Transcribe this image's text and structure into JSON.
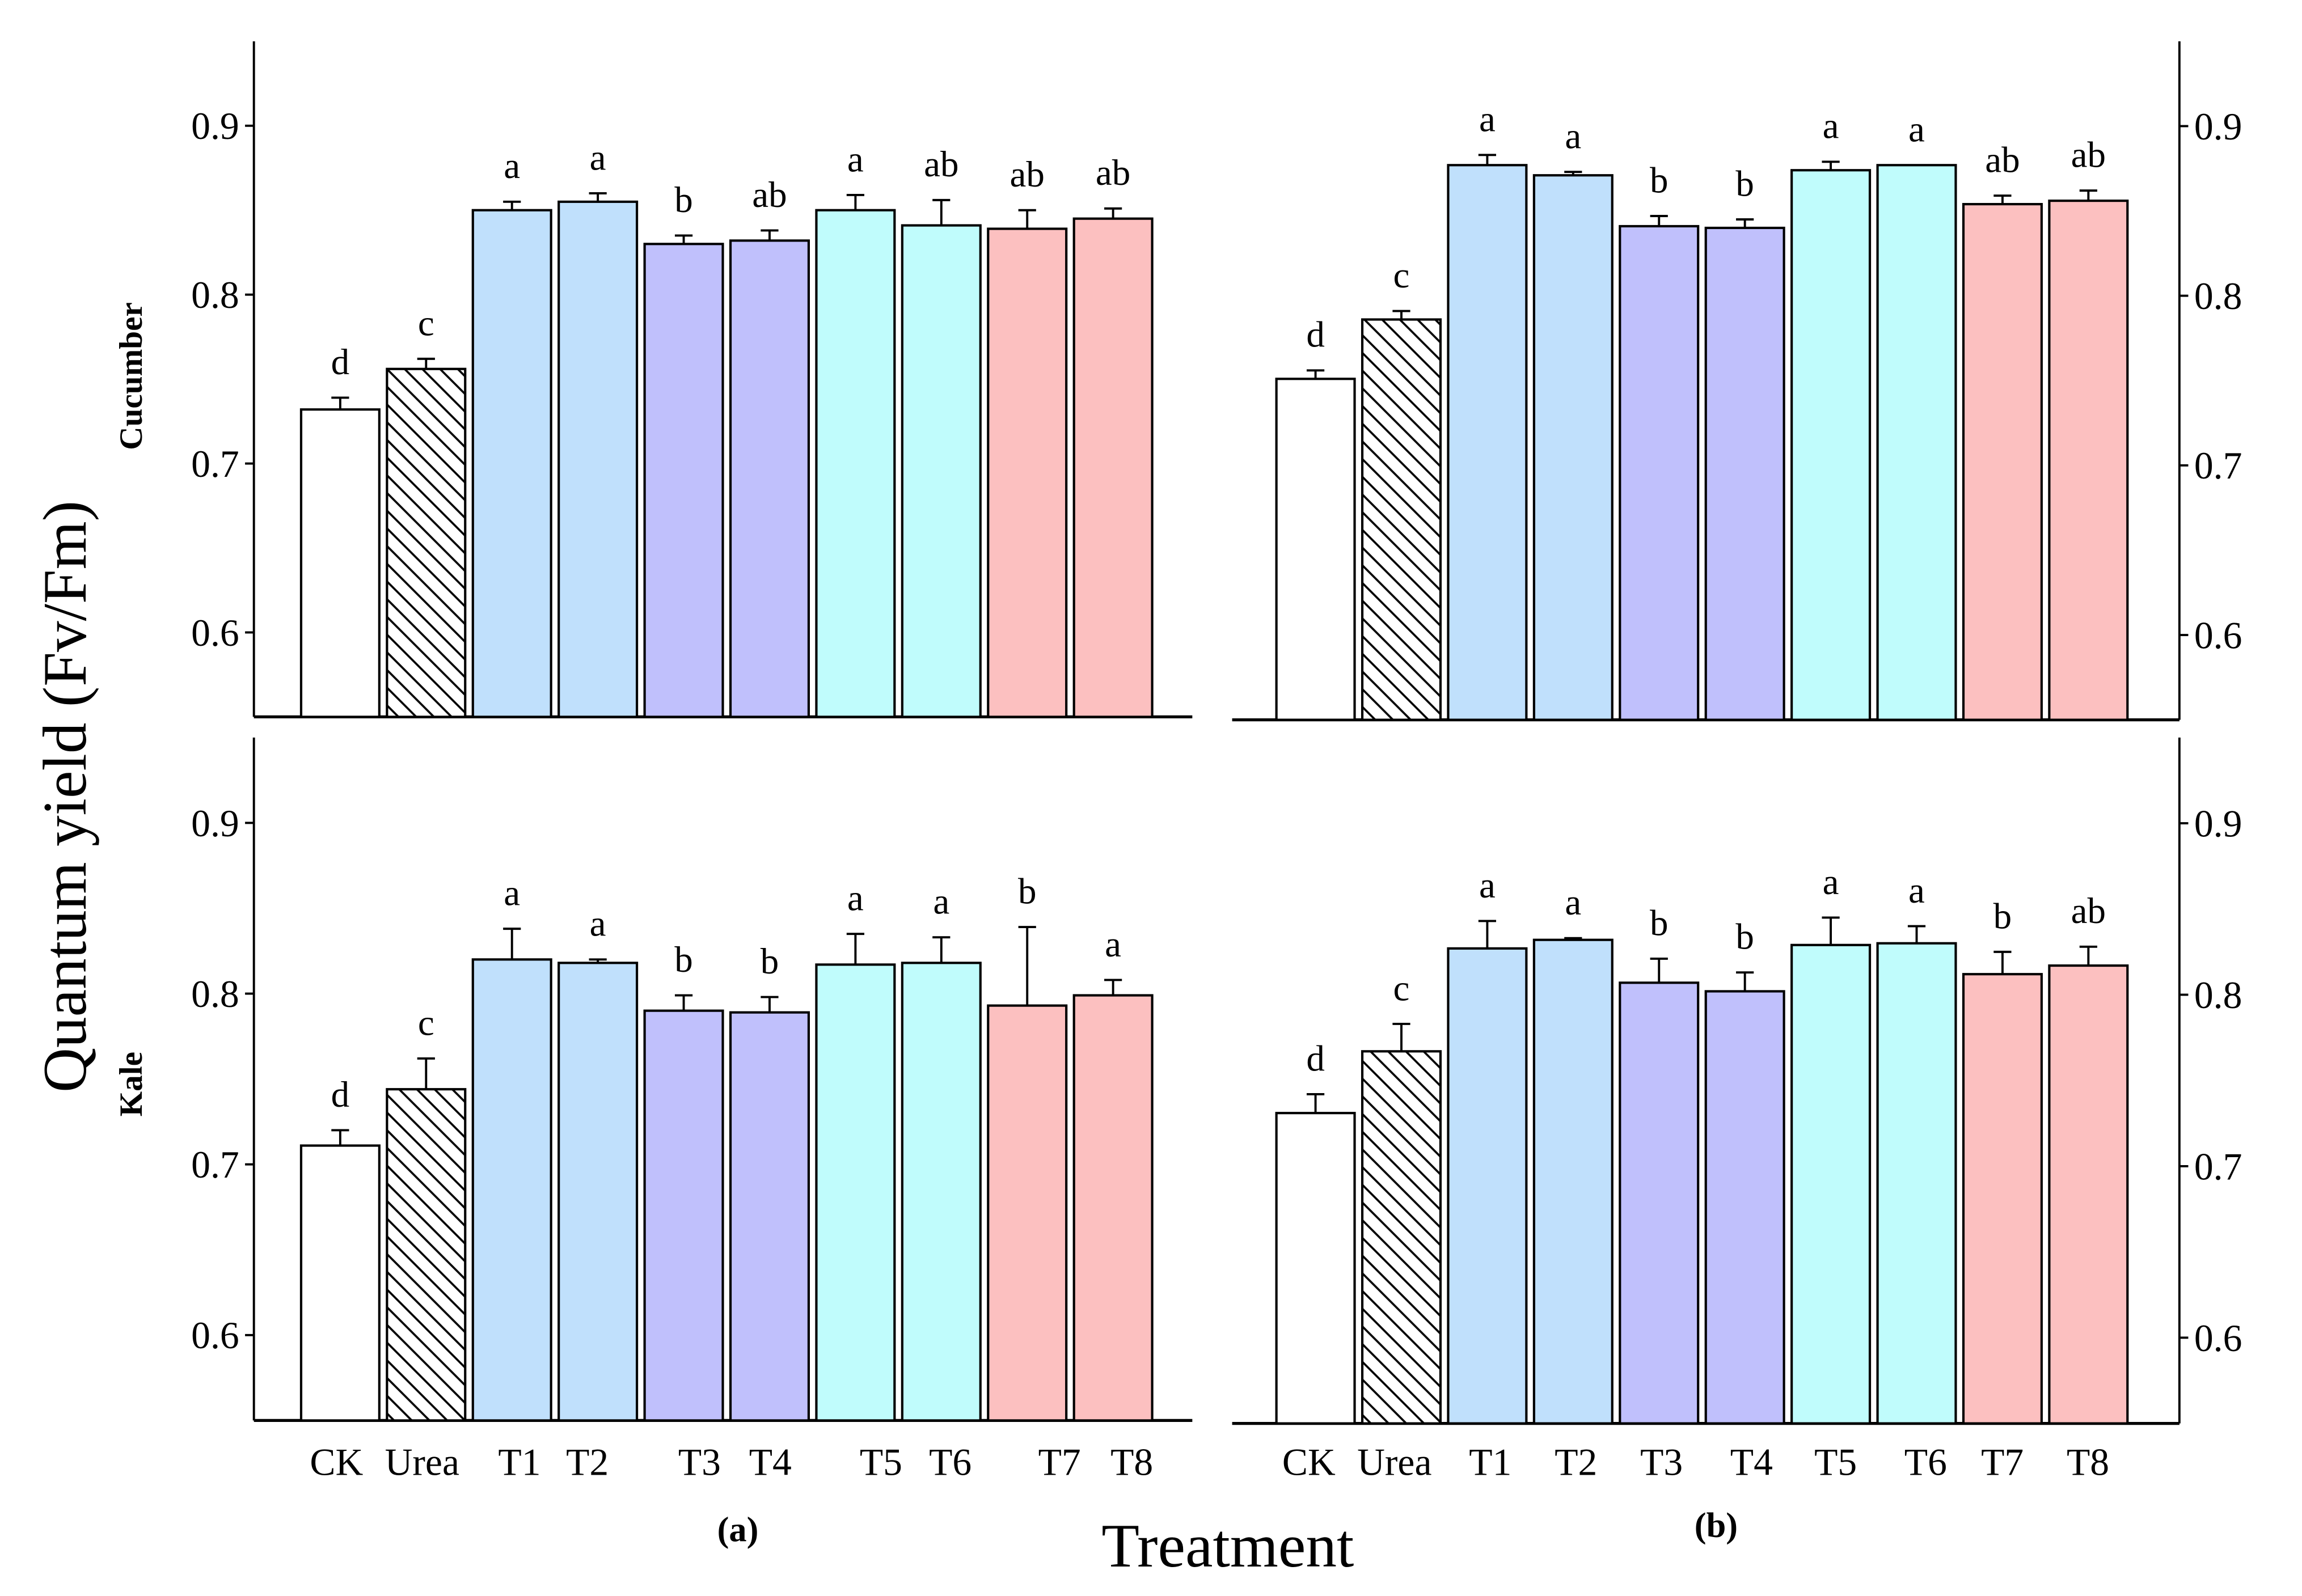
{
  "chart_data": {
    "type": "bar",
    "ylabel": "Quantum yield (Fv/Fm)",
    "xlabel": "Treatment",
    "ylim": [
      0.55,
      0.95
    ],
    "yticks": [
      "0.6",
      "0.7",
      "0.8",
      "0.9"
    ],
    "ytick_values": [
      0.6,
      0.7,
      0.8,
      0.9
    ],
    "grid": false,
    "categories": [
      "CK",
      "Urea",
      "T1",
      "T2",
      "T3",
      "T4",
      "T5",
      "T6",
      "T7",
      "T8"
    ],
    "colors": [
      "#ffffff",
      "hatch",
      "#c0e0fc",
      "#c0e0fc",
      "#c0c0fc",
      "#c0c0fc",
      "#c0fcfc",
      "#c0fcfc",
      "#fcc0c0",
      "#fcc0c0"
    ],
    "row_labels": [
      "Cucumber",
      "Kale"
    ],
    "column_labels": [
      "(a)",
      "(b)"
    ],
    "panels": [
      {
        "id": "cucumber-a",
        "row": "Cucumber",
        "column": "(a)",
        "values": [
          0.732,
          0.756,
          0.85,
          0.855,
          0.83,
          0.832,
          0.85,
          0.841,
          0.839,
          0.845
        ],
        "errors": [
          0.007,
          0.006,
          0.005,
          0.005,
          0.005,
          0.006,
          0.009,
          0.015,
          0.011,
          0.006
        ],
        "letters": [
          "d",
          "c",
          "a",
          "a",
          "b",
          "ab",
          "a",
          "ab",
          "ab",
          "ab"
        ]
      },
      {
        "id": "cucumber-b",
        "row": "Cucumber",
        "column": "(b)",
        "values": [
          0.751,
          0.786,
          0.877,
          0.871,
          0.841,
          0.84,
          0.874,
          0.877,
          0.854,
          0.856
        ],
        "errors": [
          0.005,
          0.005,
          0.006,
          0.002,
          0.006,
          0.005,
          0.005,
          0.0,
          0.005,
          0.006
        ],
        "letters": [
          "d",
          "c",
          "a",
          "a",
          "b",
          "b",
          "a",
          "a",
          "ab",
          "ab"
        ]
      },
      {
        "id": "kale-a",
        "row": "Kale",
        "column": "(a)",
        "values": [
          0.711,
          0.744,
          0.82,
          0.818,
          0.79,
          0.789,
          0.817,
          0.818,
          0.793,
          0.799
        ],
        "errors": [
          0.009,
          0.018,
          0.018,
          0.002,
          0.009,
          0.009,
          0.018,
          0.015,
          0.046,
          0.009
        ],
        "letters": [
          "d",
          "c",
          "a",
          "a",
          "b",
          "b",
          "a",
          "a",
          "b",
          "a"
        ]
      },
      {
        "id": "kale-b",
        "row": "Kale",
        "column": "(b)",
        "values": [
          0.731,
          0.767,
          0.827,
          0.832,
          0.807,
          0.802,
          0.829,
          0.83,
          0.812,
          0.817
        ],
        "errors": [
          0.011,
          0.016,
          0.016,
          0.001,
          0.014,
          0.011,
          0.016,
          0.01,
          0.013,
          0.011
        ],
        "letters": [
          "d",
          "c",
          "a",
          "a",
          "b",
          "b",
          "a",
          "a",
          "b",
          "ab"
        ]
      }
    ]
  }
}
